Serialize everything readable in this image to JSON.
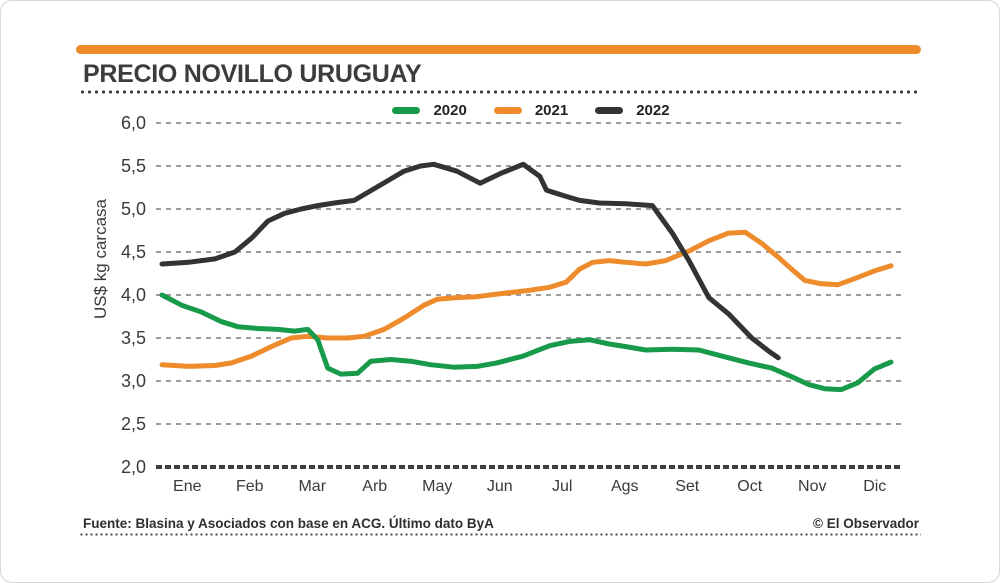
{
  "header": {
    "title": "PRECIO NOVILLO URUGUAY"
  },
  "footer": {
    "source": "Fuente: Blasina y Asociados con base en  ACG. Último dato ByA",
    "credit": "© El Observador"
  },
  "colors": {
    "accent_bar": "#ee8b2b",
    "grid": "#9c9c9c",
    "axis": "#3f3f3f",
    "text": "#3a3a3a"
  },
  "chart_data": {
    "type": "line",
    "title": "PRECIO NOVILLO URUGUAY",
    "xlabel": "",
    "ylabel": "US$ kg carcasa",
    "ylim": [
      2.0,
      6.0
    ],
    "grid": "dashed-horizontal",
    "legend_position": "top-center",
    "x_unit": "month-index",
    "categories": [
      "Ene",
      "Feb",
      "Mar",
      "Arb",
      "May",
      "Jun",
      "Jul",
      "Ags",
      "Set",
      "Oct",
      "Nov",
      "Dic"
    ],
    "y_ticks": [
      {
        "value": 6.0,
        "label": "6,0"
      },
      {
        "value": 5.5,
        "label": "5,5"
      },
      {
        "value": 5.0,
        "label": "5,0"
      },
      {
        "value": 4.5,
        "label": "4,5"
      },
      {
        "value": 4.0,
        "label": "4,0"
      },
      {
        "value": 3.5,
        "label": "3,5"
      },
      {
        "value": 3.0,
        "label": "3,0"
      },
      {
        "value": 2.5,
        "label": "2,5"
      },
      {
        "value": 2.0,
        "label": "2,0"
      }
    ],
    "draw_order": [
      "2021",
      "2020",
      "2022"
    ],
    "series": [
      {
        "name": "2020",
        "color": "#189a4b",
        "points": [
          [
            0,
            4.0
          ],
          [
            0.3,
            3.88
          ],
          [
            0.6,
            3.8
          ],
          [
            0.9,
            3.69
          ],
          [
            1.15,
            3.63
          ],
          [
            1.45,
            3.61
          ],
          [
            1.75,
            3.6
          ],
          [
            2.0,
            3.58
          ],
          [
            2.2,
            3.6
          ],
          [
            2.35,
            3.48
          ],
          [
            2.5,
            3.15
          ],
          [
            2.7,
            3.08
          ],
          [
            2.95,
            3.09
          ],
          [
            3.15,
            3.23
          ],
          [
            3.45,
            3.25
          ],
          [
            3.75,
            3.23
          ],
          [
            4.05,
            3.19
          ],
          [
            4.4,
            3.16
          ],
          [
            4.75,
            3.17
          ],
          [
            5.05,
            3.21
          ],
          [
            5.45,
            3.29
          ],
          [
            5.85,
            3.41
          ],
          [
            6.15,
            3.46
          ],
          [
            6.45,
            3.48
          ],
          [
            6.75,
            3.43
          ],
          [
            7.0,
            3.4
          ],
          [
            7.3,
            3.36
          ],
          [
            7.7,
            3.37
          ],
          [
            8.1,
            3.36
          ],
          [
            8.5,
            3.28
          ],
          [
            8.85,
            3.21
          ],
          [
            9.2,
            3.15
          ],
          [
            9.5,
            3.05
          ],
          [
            9.75,
            2.96
          ],
          [
            10.0,
            2.91
          ],
          [
            10.25,
            2.9
          ],
          [
            10.5,
            2.98
          ],
          [
            10.75,
            3.14
          ],
          [
            11,
            3.22
          ]
        ]
      },
      {
        "name": "2021",
        "color": "#ee8b2b",
        "points": [
          [
            0,
            3.19
          ],
          [
            0.4,
            3.17
          ],
          [
            0.8,
            3.18
          ],
          [
            1.05,
            3.21
          ],
          [
            1.35,
            3.29
          ],
          [
            1.65,
            3.4
          ],
          [
            1.95,
            3.5
          ],
          [
            2.2,
            3.52
          ],
          [
            2.5,
            3.5
          ],
          [
            2.8,
            3.5
          ],
          [
            3.05,
            3.52
          ],
          [
            3.35,
            3.6
          ],
          [
            3.65,
            3.73
          ],
          [
            3.95,
            3.88
          ],
          [
            4.15,
            3.95
          ],
          [
            4.45,
            3.97
          ],
          [
            4.75,
            3.98
          ],
          [
            5.05,
            4.01
          ],
          [
            5.5,
            4.05
          ],
          [
            5.85,
            4.09
          ],
          [
            6.1,
            4.15
          ],
          [
            6.3,
            4.3
          ],
          [
            6.5,
            4.38
          ],
          [
            6.75,
            4.4
          ],
          [
            7.0,
            4.38
          ],
          [
            7.3,
            4.36
          ],
          [
            7.6,
            4.4
          ],
          [
            7.95,
            4.51
          ],
          [
            8.25,
            4.63
          ],
          [
            8.55,
            4.72
          ],
          [
            8.8,
            4.73
          ],
          [
            9.05,
            4.6
          ],
          [
            9.3,
            4.44
          ],
          [
            9.5,
            4.3
          ],
          [
            9.7,
            4.17
          ],
          [
            9.95,
            4.13
          ],
          [
            10.2,
            4.12
          ],
          [
            10.45,
            4.19
          ],
          [
            10.75,
            4.28
          ],
          [
            11,
            4.34
          ]
        ]
      },
      {
        "name": "2022",
        "color": "#333333",
        "points": [
          [
            0,
            4.36
          ],
          [
            0.4,
            4.38
          ],
          [
            0.8,
            4.42
          ],
          [
            1.1,
            4.5
          ],
          [
            1.35,
            4.66
          ],
          [
            1.6,
            4.86
          ],
          [
            1.85,
            4.95
          ],
          [
            2.1,
            5.0
          ],
          [
            2.35,
            5.04
          ],
          [
            2.6,
            5.07
          ],
          [
            2.9,
            5.1
          ],
          [
            3.3,
            5.28
          ],
          [
            3.65,
            5.44
          ],
          [
            3.9,
            5.5
          ],
          [
            4.1,
            5.52
          ],
          [
            4.45,
            5.44
          ],
          [
            4.8,
            5.3
          ],
          [
            5.1,
            5.41
          ],
          [
            5.45,
            5.52
          ],
          [
            5.7,
            5.38
          ],
          [
            5.8,
            5.22
          ],
          [
            6.0,
            5.17
          ],
          [
            6.3,
            5.1
          ],
          [
            6.6,
            5.07
          ],
          [
            7.0,
            5.06
          ],
          [
            7.4,
            5.04
          ],
          [
            7.7,
            4.72
          ],
          [
            7.95,
            4.4
          ],
          [
            8.25,
            3.97
          ],
          [
            8.55,
            3.78
          ],
          [
            8.9,
            3.5
          ],
          [
            9.15,
            3.35
          ],
          [
            9.3,
            3.27
          ]
        ]
      }
    ]
  }
}
